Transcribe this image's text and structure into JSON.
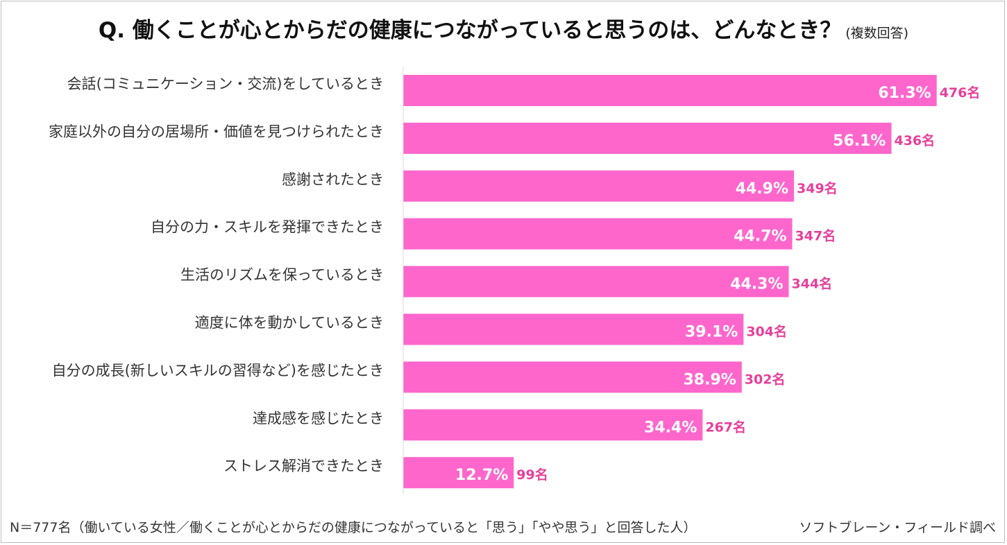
{
  "title": {
    "main": "Q.  働くことが心とからだの健康につながっていると思うのは、どんなとき？",
    "sub": "(複数回答)"
  },
  "footer": {
    "note": "N＝777名（働いている女性／働くことが心とからだの健康につながっていると「思う」「やや思う」と回答した人）",
    "source": "ソフトブレーン・フィールド調べ"
  },
  "chart_data": {
    "type": "bar",
    "orientation": "horizontal",
    "categories": [
      "会話(コミュニケーション・交流)をしているとき",
      "家庭以外の自分の居場所・価値を見つけられたとき",
      "感謝されたとき",
      "自分の力・スキルを発揮できたとき",
      "生活のリズムを保っているとき",
      "適度に体を動かしているとき",
      "自分の成長(新しいスキルの習得など)を感じたとき",
      "達成感を感じたとき",
      "ストレス解消できたとき"
    ],
    "values": [
      61.3,
      56.1,
      44.9,
      44.7,
      44.3,
      39.1,
      38.9,
      34.4,
      12.7
    ],
    "value_labels": [
      "61.3%",
      "56.1%",
      "44.9%",
      "44.7%",
      "44.3%",
      "39.1%",
      "38.9%",
      "34.4%",
      "12.7%"
    ],
    "counts": [
      "476名",
      "436名",
      "349名",
      "347名",
      "344名",
      "304名",
      "302名",
      "267名",
      "99名"
    ],
    "xlim": [
      0,
      100
    ],
    "grid": false,
    "bar_color": "#ff66cc",
    "count_color": "#e83e9a",
    "value_label_color": "#ffffff"
  }
}
